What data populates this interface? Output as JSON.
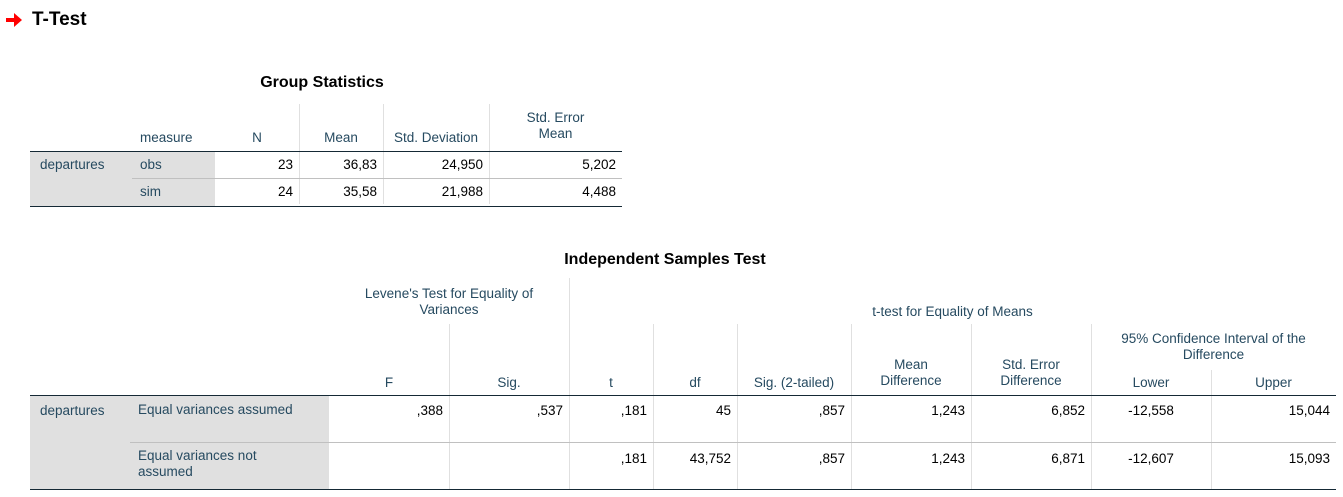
{
  "page": {
    "title": "T-Test",
    "arrow_color": "#ff0000"
  },
  "group_statistics": {
    "caption": "Group Statistics",
    "headers": {
      "measure": "measure",
      "n": "N",
      "mean": "Mean",
      "std_dev": "Std. Deviation",
      "std_err": "Std. Error Mean"
    },
    "group_label": "departures",
    "rows": [
      {
        "measure": "obs",
        "n": "23",
        "mean": "36,83",
        "std_dev": "24,950",
        "std_err": "5,202"
      },
      {
        "measure": "sim",
        "n": "24",
        "mean": "35,58",
        "std_dev": "21,988",
        "std_err": "4,488"
      }
    ]
  },
  "independent_test": {
    "caption": "Independent Samples Test",
    "levene_header": "Levene's Test for Equality of Variances",
    "ttest_header": "t-test for Equality of Means",
    "ci_header": "95% Confidence Interval of the Difference",
    "columns": {
      "f": "F",
      "sig": "Sig.",
      "t": "t",
      "df": "df",
      "sig2": "Sig. (2-tailed)",
      "mean_diff": "Mean Difference",
      "se_diff": "Std. Error Difference",
      "lower": "Lower",
      "upper": "Upper"
    },
    "group_label": "departures",
    "rows": [
      {
        "label": "Equal variances assumed",
        "f": ",388",
        "sig": ",537",
        "t": ",181",
        "df": "45",
        "sig2": ",857",
        "mean_diff": "1,243",
        "se_diff": "6,852",
        "lower": "-12,558",
        "upper": "15,044"
      },
      {
        "label": "Equal variances not assumed",
        "f": "",
        "sig": "",
        "t": ",181",
        "df": "43,752",
        "sig2": ",857",
        "mean_diff": "1,243",
        "se_diff": "6,871",
        "lower": "-12,607",
        "upper": "15,093"
      }
    ]
  }
}
